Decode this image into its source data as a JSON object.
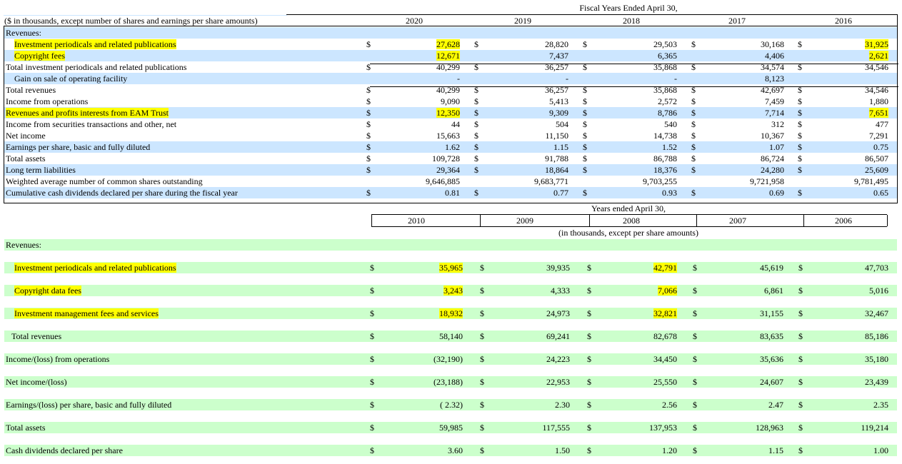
{
  "table1": {
    "header": {
      "super_title": "Fiscal Years Ended April 30,",
      "unit_note": "($ in thousands, except number of shares and earnings per share amounts)",
      "years": [
        "2020",
        "2019",
        "2018",
        "2017",
        "2016"
      ]
    },
    "rows": [
      {
        "label": "Revenues:",
        "indent": false,
        "bg": "blue",
        "dollar": [
          false,
          false,
          false,
          false,
          false
        ],
        "values": [
          "",
          "",
          "",
          "",
          ""
        ],
        "label_hl": false,
        "hl": [
          false,
          false,
          false,
          false,
          false
        ]
      },
      {
        "label": "Investment periodicals and related publications",
        "indent": true,
        "bg": "white",
        "dollar": [
          true,
          true,
          true,
          true,
          true
        ],
        "values": [
          "27,628",
          "28,820",
          "29,503",
          "30,168",
          "31,925"
        ],
        "label_hl": true,
        "hl": [
          true,
          false,
          false,
          false,
          true
        ]
      },
      {
        "label": "Copyright fees",
        "indent": true,
        "bg": "blue",
        "dollar": [
          false,
          false,
          false,
          false,
          false
        ],
        "values": [
          "12,671",
          "7,437",
          "6,365",
          "4,406",
          "2,621"
        ],
        "label_hl": true,
        "hl": [
          true,
          false,
          false,
          false,
          true
        ]
      },
      {
        "label": "Total investment periodicals and related publications",
        "indent": false,
        "bg": "white",
        "dollar": [
          true,
          true,
          true,
          true,
          true
        ],
        "values": [
          "40,299",
          "36,257",
          "35,868",
          "34,574",
          "34,546"
        ],
        "label_hl": false,
        "hl": [
          false,
          false,
          false,
          false,
          false
        ]
      },
      {
        "label": "Gain on sale of operating facility",
        "indent": true,
        "bg": "blue",
        "dollar": [
          false,
          false,
          false,
          false,
          false
        ],
        "values": [
          "-",
          "-",
          "-",
          "8,123",
          ""
        ],
        "label_hl": false,
        "hl": [
          false,
          false,
          false,
          false,
          false
        ]
      },
      {
        "label": "Total revenues",
        "indent": false,
        "bg": "white",
        "dollar": [
          true,
          true,
          true,
          true,
          true
        ],
        "values": [
          "40,299",
          "36,257",
          "35,868",
          "42,697",
          "34,546"
        ],
        "label_hl": false,
        "hl": [
          false,
          false,
          false,
          false,
          false
        ]
      },
      {
        "label": "Income from operations",
        "indent": false,
        "bg": "white",
        "dollar": [
          true,
          true,
          true,
          true,
          true
        ],
        "values": [
          "9,090",
          "5,413",
          "2,572",
          "7,459",
          "1,880"
        ],
        "label_hl": false,
        "hl": [
          false,
          false,
          false,
          false,
          false
        ]
      },
      {
        "label": "Revenues and profits interests from EAM Trust",
        "indent": false,
        "bg": "blue",
        "dollar": [
          true,
          true,
          true,
          true,
          true
        ],
        "values": [
          "12,350",
          "9,309",
          "8,786",
          "7,714",
          "7,651"
        ],
        "label_hl": true,
        "hl": [
          true,
          false,
          false,
          false,
          true
        ]
      },
      {
        "label": "Income from securities transactions and other, net",
        "indent": false,
        "bg": "white",
        "dollar": [
          true,
          true,
          true,
          true,
          true
        ],
        "values": [
          "44",
          "504",
          "540",
          "312",
          "477"
        ],
        "label_hl": false,
        "hl": [
          false,
          false,
          false,
          false,
          false
        ]
      },
      {
        "label": "Net income",
        "indent": false,
        "bg": "white",
        "dollar": [
          true,
          true,
          true,
          true,
          true
        ],
        "values": [
          "15,663",
          "11,150",
          "14,738",
          "10,367",
          "7,291"
        ],
        "label_hl": false,
        "hl": [
          false,
          false,
          false,
          false,
          false
        ]
      },
      {
        "label": "Earnings per share, basic and fully diluted",
        "indent": false,
        "bg": "blue",
        "dollar": [
          true,
          true,
          true,
          true,
          true
        ],
        "values": [
          "1.62",
          "1.15",
          "1.52",
          "1.07",
          "0.75"
        ],
        "label_hl": false,
        "hl": [
          false,
          false,
          false,
          false,
          false
        ]
      },
      {
        "label": "Total assets",
        "indent": false,
        "bg": "white",
        "dollar": [
          true,
          true,
          true,
          true,
          true
        ],
        "values": [
          "109,728",
          "91,788",
          "86,788",
          "86,724",
          "86,507"
        ],
        "label_hl": false,
        "hl": [
          false,
          false,
          false,
          false,
          false
        ]
      },
      {
        "label": "Long term liabilities",
        "indent": false,
        "bg": "blue",
        "dollar": [
          true,
          true,
          true,
          true,
          true
        ],
        "values": [
          "29,364",
          "18,864",
          "18,376",
          "24,280",
          "25,609"
        ],
        "label_hl": false,
        "hl": [
          false,
          false,
          false,
          false,
          false
        ]
      },
      {
        "label": "Weighted average number of common shares outstanding",
        "indent": false,
        "bg": "white",
        "dollar": [
          false,
          false,
          false,
          false,
          false
        ],
        "values": [
          "9,646,885",
          "9,683,771",
          "9,703,255",
          "9,721,958",
          "9,781,495"
        ],
        "label_hl": false,
        "hl": [
          false,
          false,
          false,
          false,
          false
        ]
      },
      {
        "label": "Cumulative cash dividends declared per share during the fiscal year",
        "indent": false,
        "bg": "blue",
        "dollar": [
          true,
          true,
          true,
          true,
          true
        ],
        "values": [
          "0.81",
          "0.77",
          "0.93",
          "0.69",
          "0.65"
        ],
        "label_hl": false,
        "hl": [
          false,
          false,
          false,
          false,
          false
        ]
      }
    ]
  },
  "table2": {
    "header": {
      "super_title": "Years ended April 30,",
      "unit_note": "(in thousands, except per share amounts)",
      "years": [
        "2010",
        "2009",
        "2008",
        "2007",
        "2006"
      ]
    },
    "rows": [
      {
        "label": "Revenues:",
        "indent": false,
        "dollar": [
          false,
          false,
          false,
          false,
          false
        ],
        "values": [
          "",
          "",
          "",
          "",
          ""
        ],
        "label_hl": false,
        "hl": [
          false,
          false,
          false,
          false,
          false
        ]
      },
      {
        "label": "Investment periodicals and related publications",
        "indent": true,
        "dollar": [
          true,
          true,
          true,
          true,
          true
        ],
        "values": [
          "35,965",
          "39,935",
          "42,791",
          "45,619",
          "47,703"
        ],
        "label_hl": true,
        "hl": [
          true,
          false,
          true,
          false,
          false
        ]
      },
      {
        "label": "Copyright data fees",
        "indent": true,
        "dollar": [
          true,
          true,
          true,
          true,
          true
        ],
        "values": [
          "3,243",
          "4,333",
          "7,066",
          "6,861",
          "5,016"
        ],
        "label_hl": true,
        "hl": [
          true,
          false,
          true,
          false,
          false
        ]
      },
      {
        "label": "Investment management fees and services",
        "indent": true,
        "dollar": [
          true,
          true,
          true,
          true,
          true
        ],
        "values": [
          "18,932",
          "24,973",
          "32,821",
          "31,155",
          "32,467"
        ],
        "label_hl": true,
        "hl": [
          true,
          false,
          true,
          false,
          false
        ]
      },
      {
        "label": "Total revenues",
        "indent": "small",
        "dollar": [
          true,
          true,
          true,
          true,
          true
        ],
        "values": [
          "58,140",
          "69,241",
          "82,678",
          "83,635",
          "85,186"
        ],
        "label_hl": false,
        "hl": [
          false,
          false,
          false,
          false,
          false
        ]
      },
      {
        "label": "Income/(loss) from operations",
        "indent": false,
        "dollar": [
          true,
          true,
          true,
          true,
          true
        ],
        "values": [
          "(32,190)",
          "24,223",
          "34,450",
          "35,636",
          "35,180"
        ],
        "label_hl": false,
        "hl": [
          false,
          false,
          false,
          false,
          false
        ]
      },
      {
        "label": "Net income/(loss)",
        "indent": false,
        "dollar": [
          true,
          true,
          true,
          true,
          true
        ],
        "values": [
          "(23,188)",
          "22,953",
          "25,550",
          "24,607",
          "23,439"
        ],
        "label_hl": false,
        "hl": [
          false,
          false,
          false,
          false,
          false
        ]
      },
      {
        "label": "Earnings/(loss) per share, basic and fully diluted",
        "indent": false,
        "dollar": [
          true,
          true,
          true,
          true,
          true
        ],
        "values": [
          "( 2.32)",
          "2.30",
          "2.56",
          "2.47",
          "2.35"
        ],
        "label_hl": false,
        "hl": [
          false,
          false,
          false,
          false,
          false
        ]
      },
      {
        "label": "Total assets",
        "indent": false,
        "dollar": [
          true,
          true,
          true,
          true,
          true
        ],
        "values": [
          "59,985",
          "117,555",
          "137,953",
          "128,963",
          "119,214"
        ],
        "label_hl": false,
        "hl": [
          false,
          false,
          false,
          false,
          false
        ]
      },
      {
        "label": "Cash dividends declared per share",
        "indent": false,
        "dollar": [
          true,
          true,
          true,
          true,
          true
        ],
        "values": [
          "3.60",
          "1.50",
          "1.20",
          "1.15",
          "1.00"
        ],
        "label_hl": false,
        "hl": [
          false,
          false,
          false,
          false,
          false
        ]
      }
    ]
  },
  "dollar_sign": "$"
}
